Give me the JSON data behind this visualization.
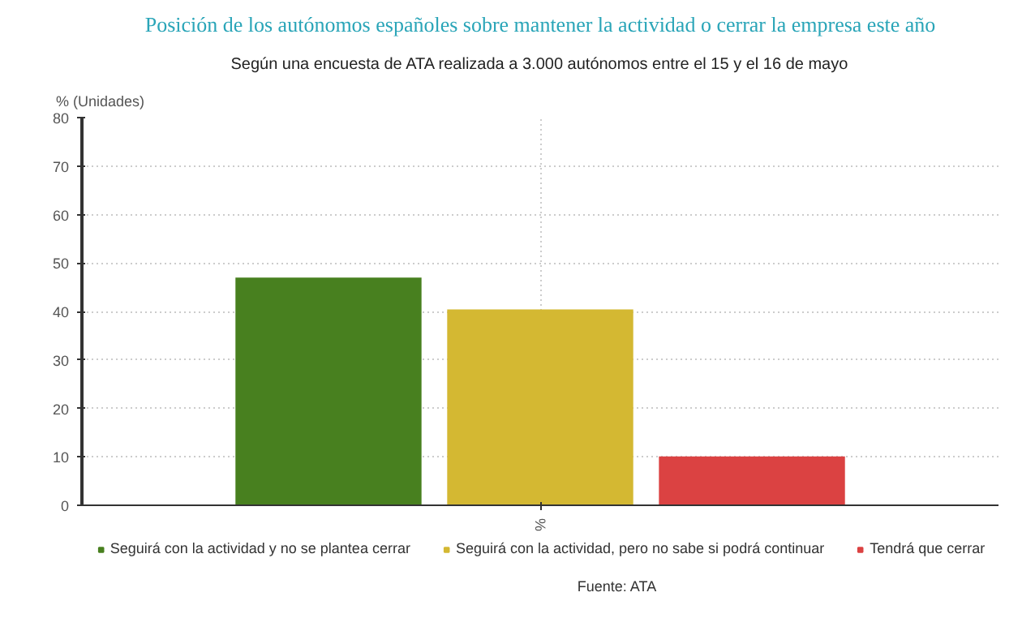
{
  "chart_data": {
    "type": "bar",
    "title": "Posición de los autónomos españoles sobre mantener la actividad o cerrar la empresa este año",
    "subtitle": "Según una encuesta de ATA realizada a 3.000 autónomos entre el 15 y el 16 de mayo",
    "ylabel": "% (Unidades)",
    "categories": [
      "%"
    ],
    "series": [
      {
        "name": "Seguirá con la actividad y no se plantea cerrar",
        "color": "#48801f",
        "values": [
          47
        ]
      },
      {
        "name": "Seguirá con la actividad, pero no sabe si podrá continuar",
        "color": "#d4b832",
        "values": [
          40.4
        ]
      },
      {
        "name": "Tendrá que cerrar",
        "color": "#db4242",
        "values": [
          10.1
        ]
      }
    ],
    "ylim": [
      0,
      80
    ],
    "yticks": [
      0,
      10,
      20,
      30,
      40,
      50,
      60,
      70,
      80
    ],
    "grid": true,
    "legend": "bottom",
    "annotations": [
      "Fuente: ATA"
    ]
  }
}
